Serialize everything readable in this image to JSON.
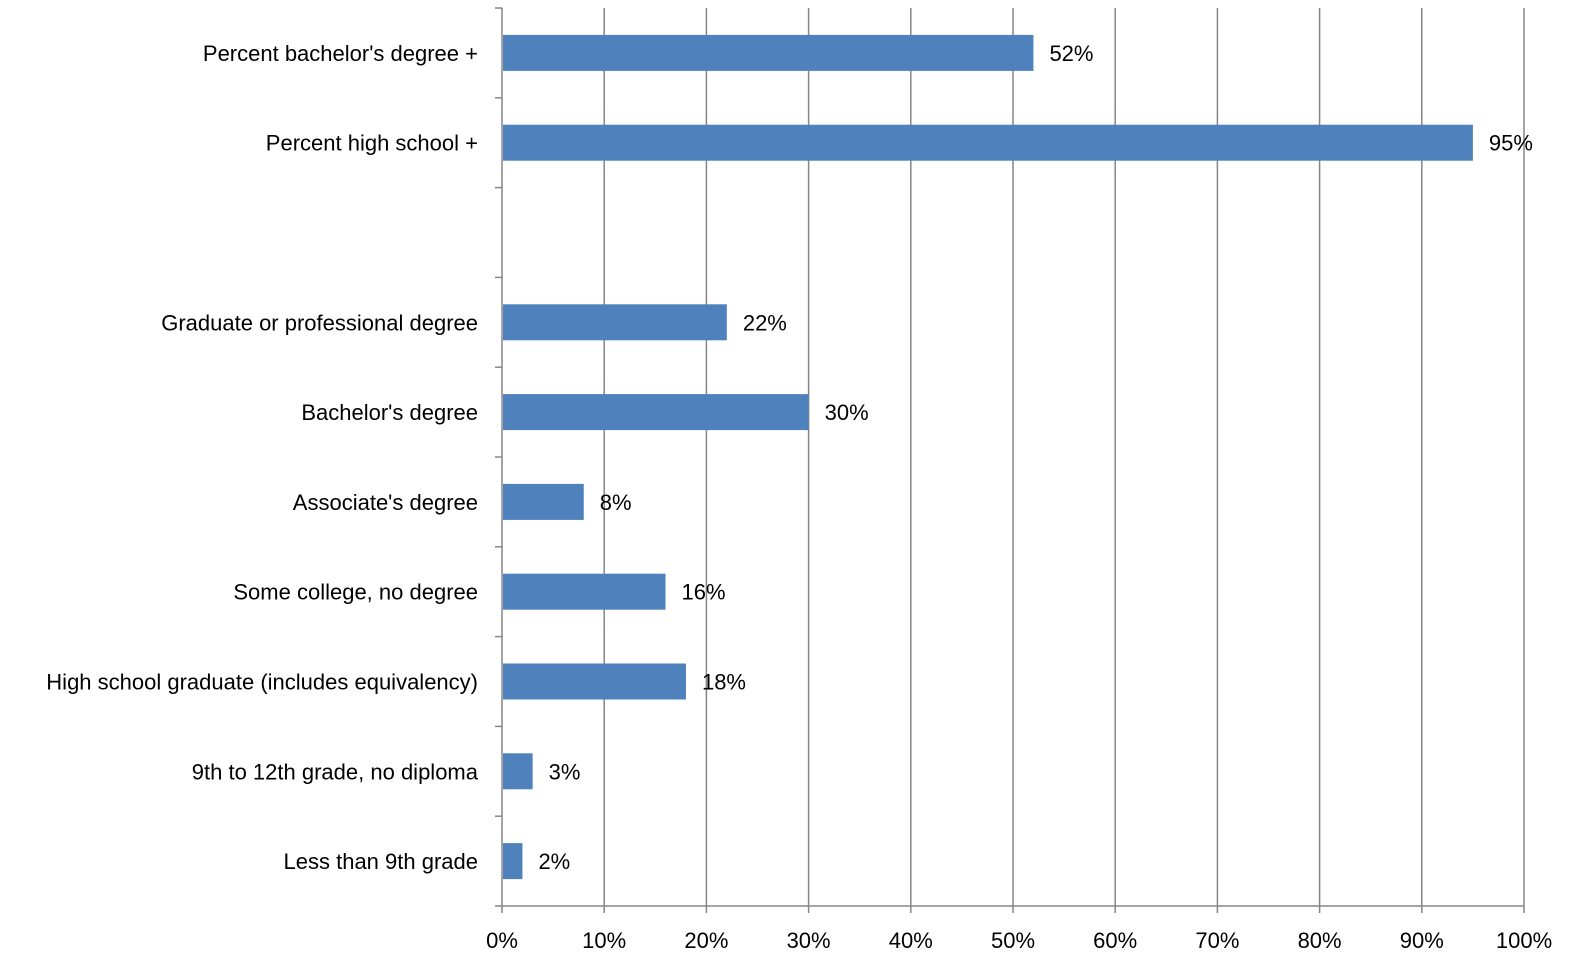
{
  "chart_data": {
    "type": "bar",
    "orientation": "horizontal",
    "categories": [
      "Percent bachelor's degree +",
      "Percent high school +",
      "",
      "Graduate or professional degree",
      "Bachelor's degree",
      "Associate's degree",
      "Some college, no degree",
      "High school graduate (includes equivalency)",
      "9th to 12th grade, no diploma",
      "Less than 9th grade"
    ],
    "values": [
      52,
      95,
      null,
      22,
      30,
      8,
      16,
      18,
      3,
      2
    ],
    "data_labels": [
      "52%",
      "95%",
      "",
      "22%",
      "30%",
      "8%",
      "16%",
      "18%",
      "3%",
      "2%"
    ],
    "title": "",
    "xlabel": "",
    "ylabel": "",
    "xlim": [
      0,
      100
    ],
    "x_ticks": [
      0,
      10,
      20,
      30,
      40,
      50,
      60,
      70,
      80,
      90,
      100
    ],
    "x_tick_labels": [
      "0%",
      "10%",
      "20%",
      "30%",
      "40%",
      "50%",
      "60%",
      "70%",
      "80%",
      "90%",
      "100%"
    ],
    "grid": "vertical",
    "legend": "none",
    "bar_color": "#4F81BD",
    "grid_color": "#868686"
  }
}
